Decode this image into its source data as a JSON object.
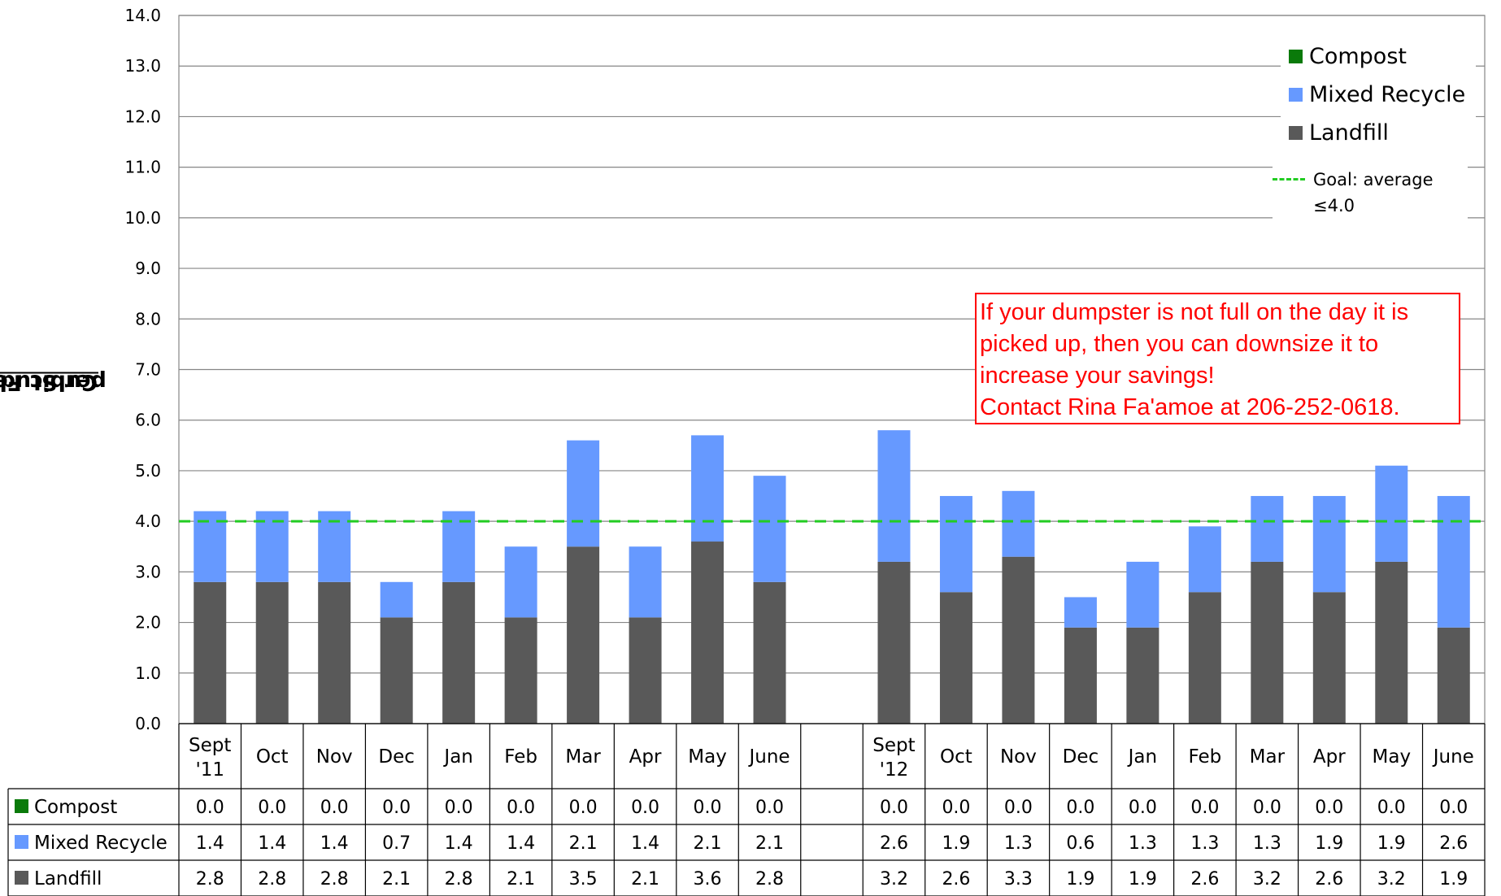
{
  "chart_data": {
    "type": "bar",
    "stacked": true,
    "ylabel": {
      "prefix": "Cubic Feet ",
      "underlined": "per Student"
    },
    "ylim": [
      0,
      14
    ],
    "yticks": [
      "0.0",
      "1.0",
      "2.0",
      "3.0",
      "4.0",
      "5.0",
      "6.0",
      "7.0",
      "8.0",
      "9.0",
      "10.0",
      "11.0",
      "12.0",
      "13.0",
      "14.0"
    ],
    "grid": true,
    "categories": [
      {
        "line1": "Sept",
        "line2": "'11"
      },
      {
        "line1": "Oct"
      },
      {
        "line1": "Nov"
      },
      {
        "line1": "Dec"
      },
      {
        "line1": "Jan"
      },
      {
        "line1": "Feb"
      },
      {
        "line1": "Mar"
      },
      {
        "line1": "Apr"
      },
      {
        "line1": "May"
      },
      {
        "line1": "June"
      },
      {
        "line1": ""
      },
      {
        "line1": "Sept",
        "line2": "'12"
      },
      {
        "line1": "Oct"
      },
      {
        "line1": "Nov"
      },
      {
        "line1": "Dec"
      },
      {
        "line1": "Jan"
      },
      {
        "line1": "Feb"
      },
      {
        "line1": "Mar"
      },
      {
        "line1": "Apr"
      },
      {
        "line1": "May"
      },
      {
        "line1": "June"
      }
    ],
    "series": [
      {
        "name": "Compost",
        "color": "#0a7a0a",
        "values": [
          0.0,
          0.0,
          0.0,
          0.0,
          0.0,
          0.0,
          0.0,
          0.0,
          0.0,
          0.0,
          null,
          0.0,
          0.0,
          0.0,
          0.0,
          0.0,
          0.0,
          0.0,
          0.0,
          0.0,
          0.0
        ],
        "labels": [
          "0.0",
          "0.0",
          "0.0",
          "0.0",
          "0.0",
          "0.0",
          "0.0",
          "0.0",
          "0.0",
          "0.0",
          "",
          "0.0",
          "0.0",
          "0.0",
          "0.0",
          "0.0",
          "0.0",
          "0.0",
          "0.0",
          "0.0",
          "0.0"
        ]
      },
      {
        "name": "Mixed Recycle",
        "color": "#6699ff",
        "values": [
          1.4,
          1.4,
          1.4,
          0.7,
          1.4,
          1.4,
          2.1,
          1.4,
          2.1,
          2.1,
          null,
          2.6,
          1.9,
          1.3,
          0.6,
          1.3,
          1.3,
          1.3,
          1.9,
          1.9,
          2.6
        ],
        "labels": [
          "1.4",
          "1.4",
          "1.4",
          "0.7",
          "1.4",
          "1.4",
          "2.1",
          "1.4",
          "2.1",
          "2.1",
          "",
          "2.6",
          "1.9",
          "1.3",
          "0.6",
          "1.3",
          "1.3",
          "1.3",
          "1.9",
          "1.9",
          "2.6"
        ]
      },
      {
        "name": "Landfill",
        "color": "#595959",
        "values": [
          2.8,
          2.8,
          2.8,
          2.1,
          2.8,
          2.1,
          3.5,
          2.1,
          3.6,
          2.8,
          null,
          3.2,
          2.6,
          3.3,
          1.9,
          1.9,
          2.6,
          3.2,
          2.6,
          3.2,
          1.9
        ],
        "labels": [
          "2.8",
          "2.8",
          "2.8",
          "2.1",
          "2.8",
          "2.1",
          "3.5",
          "2.1",
          "3.6",
          "2.8",
          "",
          "3.2",
          "2.6",
          "3.3",
          "1.9",
          "1.9",
          "2.6",
          "3.2",
          "2.6",
          "3.2",
          "1.9"
        ]
      }
    ],
    "goal": {
      "value": 4.0,
      "label_line1": "Goal: average",
      "label_line2": "≤4.0",
      "color": "#22cc22"
    },
    "legend_position": "top-right",
    "data_table": true
  },
  "annotation": {
    "lines": [
      "If your dumpster is not full on the day it is",
      "picked up, then you can downsize it to",
      "increase your savings!",
      "Contact Rina Fa'amoe at 206-252-0618."
    ],
    "color": "#ff0000"
  }
}
